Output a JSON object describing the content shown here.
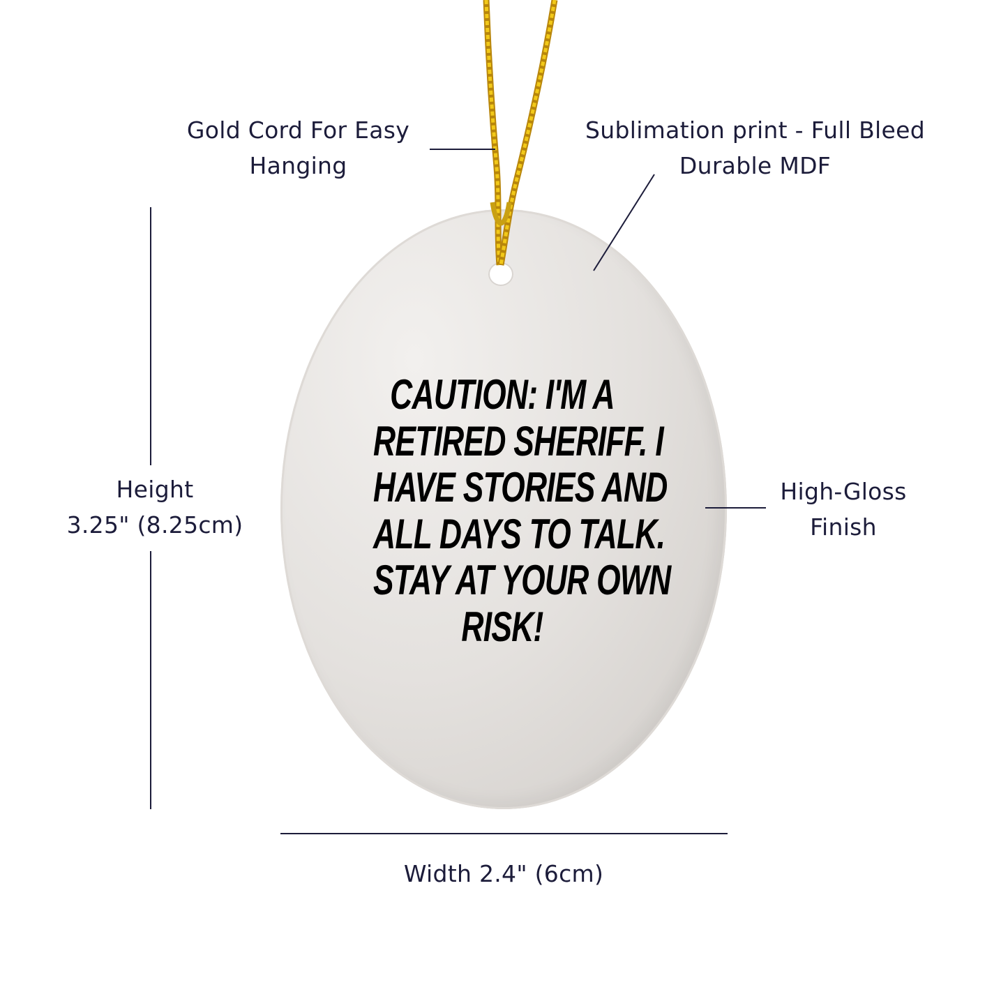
{
  "callouts": {
    "cord": [
      "Gold Cord For Easy",
      "Hanging"
    ],
    "print": [
      "Sublimation print - Full Bleed",
      "Durable MDF"
    ],
    "finish": [
      "High-Gloss",
      "Finish"
    ],
    "height": [
      "Height",
      "3.25\" (8.25cm)"
    ],
    "width": "Width 2.4\" (6cm)"
  },
  "ornament": {
    "shape": "oval",
    "quote_lines": [
      "CAUTION: I'M A",
      "RETIRED SHERIFF. I",
      "HAVE STORIES AND",
      "ALL DAYS TO TALK.",
      "STAY AT YOUR OWN",
      "RISK!"
    ],
    "cord_color": "#d4a514"
  }
}
